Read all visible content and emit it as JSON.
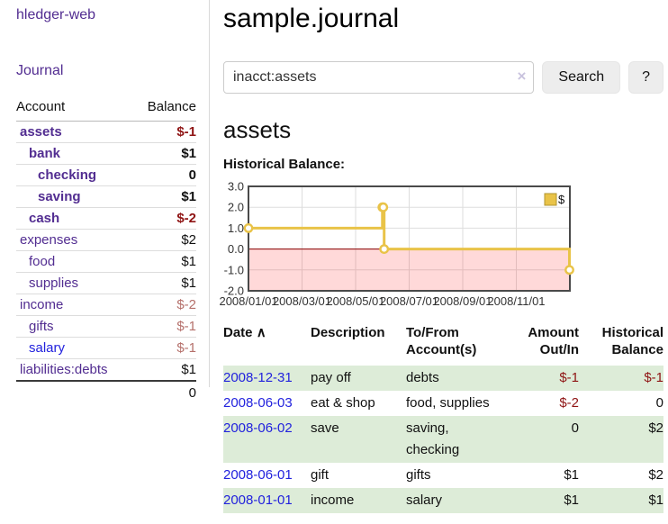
{
  "colors": {
    "accent_purple": "#522d91",
    "link_blue": "#2222dd",
    "negative_strong": "#8f1414",
    "negative_soft": "#b5706b",
    "row_green": "#ddecd8",
    "chart_gold": "#e9c348"
  },
  "sidebar": {
    "brand": "hledger-web",
    "journal_link": "Journal",
    "accounts_table": {
      "headers": {
        "account": "Account",
        "balance": "Balance"
      },
      "rows": [
        {
          "name": "assets",
          "balance": "$-1",
          "depth": 1,
          "bold": true
        },
        {
          "name": "bank",
          "balance": "$1",
          "depth": 2,
          "bold": true
        },
        {
          "name": "checking",
          "balance": "0",
          "depth": 3,
          "bold": true
        },
        {
          "name": "saving",
          "balance": "$1",
          "depth": 3,
          "bold": true
        },
        {
          "name": "cash",
          "balance": "$-2",
          "depth": 2,
          "bold": true
        },
        {
          "name": "expenses",
          "balance": "$2",
          "depth": 1,
          "bold": false
        },
        {
          "name": "food",
          "balance": "$1",
          "depth": 2,
          "bold": false
        },
        {
          "name": "supplies",
          "balance": "$1",
          "depth": 2,
          "bold": false
        },
        {
          "name": "income",
          "balance": "$-2",
          "depth": 1,
          "bold": false
        },
        {
          "name": "gifts",
          "balance": "$-1",
          "depth": 2,
          "bold": false
        },
        {
          "name": "salary",
          "balance": "$-1",
          "depth": 2,
          "bold": false,
          "unvisited": true
        },
        {
          "name": "liabilities:debts",
          "balance": "$1",
          "depth": 1,
          "bold": false
        }
      ],
      "total": "0"
    }
  },
  "header": {
    "title": "sample.journal"
  },
  "search": {
    "value": "inacct:assets",
    "clear_icon": "×",
    "button_label": "Search",
    "help_label": "?"
  },
  "main": {
    "account_heading": "assets",
    "chart_label": "Historical Balance:"
  },
  "chart_data": {
    "type": "line",
    "step": true,
    "title": "Historical Balance:",
    "series": [
      {
        "name": "$",
        "points": [
          {
            "date": "2008-01-01",
            "value": 1
          },
          {
            "date": "2008-06-01",
            "value": 2
          },
          {
            "date": "2008-06-02",
            "value": 2
          },
          {
            "date": "2008-06-03",
            "value": 0
          },
          {
            "date": "2008-12-31",
            "value": -1
          }
        ]
      }
    ],
    "ylim": [
      -2,
      3
    ],
    "yticks": [
      {
        "value": 3,
        "label": "3.0"
      },
      {
        "value": 2,
        "label": "2.0"
      },
      {
        "value": 1,
        "label": "1.0"
      },
      {
        "value": 0,
        "label": "0.0"
      },
      {
        "value": -1,
        "label": "-1.0"
      },
      {
        "value": -2,
        "label": "-2.0"
      }
    ],
    "xticks": [
      {
        "date": "2008-01-01",
        "label": "2008/01/01"
      },
      {
        "date": "2008-03-01",
        "label": "2008/03/01"
      },
      {
        "date": "2008-05-01",
        "label": "2008/05/01"
      },
      {
        "date": "2008-07-01",
        "label": "2008/07/01"
      },
      {
        "date": "2008-09-01",
        "label": "2008/09/01"
      },
      {
        "date": "2008-11-01",
        "label": "2008/11/01"
      }
    ],
    "x_range": [
      "2008-01-01",
      "2008-12-31"
    ],
    "legend": {
      "label": "$",
      "position": "top-right"
    },
    "grid": true,
    "negative_region_shaded": true,
    "colors": {
      "line": "#e9c348",
      "marker_fill": "#ffffff",
      "negative_fill": "rgba(255,0,0,0.15)",
      "zero_line": "#8b0000",
      "grid": "#dddddd",
      "frame": "#4a4a4a",
      "legend_border": "#b1952f"
    }
  },
  "register_table": {
    "headers": {
      "date": "Date",
      "description": "Description",
      "accounts": "To/From Account(s)",
      "amount": "Amount Out/In",
      "balance": "Historical Balance"
    },
    "sort_icon": "∧",
    "rows": [
      {
        "date": "2008-12-31",
        "description": "pay off",
        "accounts": "debts",
        "amount": "$-1",
        "balance": "$-1"
      },
      {
        "date": "2008-06-03",
        "description": "eat & shop",
        "accounts": "food, supplies",
        "amount": "$-2",
        "balance": "0"
      },
      {
        "date": "2008-06-02",
        "description": "save",
        "accounts": "saving, checking",
        "amount": "0",
        "balance": "$2"
      },
      {
        "date": "2008-06-01",
        "description": "gift",
        "accounts": "gifts",
        "amount": "$1",
        "balance": "$2"
      },
      {
        "date": "2008-01-01",
        "description": "income",
        "accounts": "salary",
        "amount": "$1",
        "balance": "$1"
      }
    ]
  }
}
